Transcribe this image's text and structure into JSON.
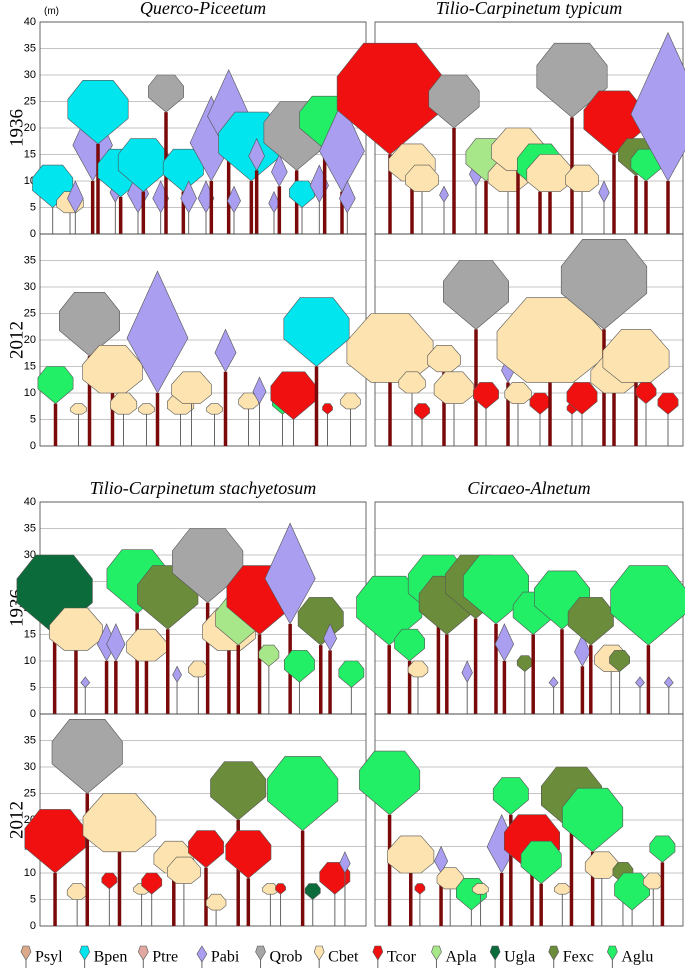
{
  "y_unit": "(m)",
  "species": [
    {
      "code": "Psyl",
      "color": "#d9a98a",
      "shape": "round"
    },
    {
      "code": "Bpen",
      "color": "#00e5ee",
      "shape": "round"
    },
    {
      "code": "Ptre",
      "color": "#e0a8a0",
      "shape": "round"
    },
    {
      "code": "Pabi",
      "color": "#a99ef0",
      "shape": "diamond"
    },
    {
      "code": "Qrob",
      "color": "#a6a6a6",
      "shape": "round"
    },
    {
      "code": "Cbet",
      "color": "#fde3b0",
      "shape": "hex"
    },
    {
      "code": "Tcor",
      "color": "#f01010",
      "shape": "round"
    },
    {
      "code": "Apla",
      "color": "#a8e68a",
      "shape": "round"
    },
    {
      "code": "Ugla",
      "color": "#0b6b3a",
      "shape": "round"
    },
    {
      "code": "Fexc",
      "color": "#6b8c3a",
      "shape": "round"
    },
    {
      "code": "Aglu",
      "color": "#22ee66",
      "shape": "round"
    }
  ],
  "blocks": [
    {
      "titles": [
        "Querco-Piceetum",
        "Tilio-Carpinetum  typicum"
      ],
      "rows": [
        {
          "year": "1936",
          "ylim": [
            0,
            40
          ],
          "yticks": [
            0,
            5,
            10,
            15,
            20,
            25,
            30,
            35,
            40
          ],
          "stands": [
            [
              [
                1,
                13,
                5
              ],
              [
                5,
                8,
                4
              ],
              [
                3,
                10,
                4
              ],
              [
                3,
                25,
                10
              ],
              [
                1,
                29,
                17
              ],
              [
                3,
                10,
                6
              ],
              [
                1,
                16,
                7
              ],
              [
                3,
                12,
                4
              ],
              [
                1,
                18,
                8
              ],
              [
                3,
                10,
                4
              ],
              [
                4,
                30,
                23
              ],
              [
                1,
                16,
                8
              ],
              [
                3,
                10,
                4
              ],
              [
                3,
                10,
                4
              ],
              [
                3,
                26,
                10
              ],
              [
                3,
                31,
                15
              ],
              [
                3,
                9,
                4
              ],
              [
                1,
                23,
                10
              ],
              [
                3,
                18,
                12
              ],
              [
                3,
                8,
                4
              ],
              [
                3,
                15,
                9
              ],
              [
                4,
                25,
                12
              ],
              [
                1,
                10,
                5
              ],
              [
                3,
                13,
                6
              ],
              [
                10,
                26,
                16
              ],
              [
                3,
                25,
                8
              ],
              [
                3,
                10,
                4
              ]
            ],
            [
              [
                6,
                36,
                15
              ],
              [
                5,
                17,
                10
              ],
              [
                5,
                13,
                8
              ],
              [
                3,
                9,
                6
              ],
              [
                4,
                30,
                20
              ],
              [
                3,
                14,
                9
              ],
              [
                7,
                18,
                10
              ],
              [
                5,
                14,
                8
              ],
              [
                5,
                20,
                12
              ],
              [
                10,
                17,
                8
              ],
              [
                5,
                15,
                8
              ],
              [
                4,
                36,
                22
              ],
              [
                5,
                13,
                8
              ],
              [
                3,
                10,
                6
              ],
              [
                6,
                27,
                15
              ],
              [
                9,
                18,
                11
              ],
              [
                10,
                16,
                10
              ],
              [
                3,
                38,
                10
              ]
            ]
          ]
        },
        {
          "year": "2012",
          "ylim": [
            0,
            40
          ],
          "yticks": [
            0,
            5,
            10,
            15,
            20,
            25,
            30,
            35
          ],
          "stands": [
            [
              [
                10,
                15,
                8
              ],
              [
                5,
                8,
                6
              ],
              [
                4,
                29,
                17
              ],
              [
                5,
                19,
                10
              ],
              [
                5,
                10,
                6
              ],
              [
                5,
                8,
                6
              ],
              [
                3,
                33,
                10
              ],
              [
                5,
                10,
                6
              ],
              [
                5,
                14,
                8
              ],
              [
                5,
                8,
                6
              ],
              [
                3,
                22,
                14
              ],
              [
                5,
                10,
                7
              ],
              [
                3,
                13,
                8
              ],
              [
                10,
                10,
                6
              ],
              [
                6,
                14,
                5
              ],
              [
                1,
                28,
                15
              ],
              [
                6,
                8,
                6
              ],
              [
                5,
                10,
                7
              ]
            ],
            [
              [
                5,
                25,
                12
              ],
              [
                5,
                14,
                10
              ],
              [
                6,
                8,
                5
              ],
              [
                5,
                19,
                14
              ],
              [
                5,
                14,
                8
              ],
              [
                4,
                35,
                22
              ],
              [
                6,
                12,
                7
              ],
              [
                3,
                17,
                12
              ],
              [
                5,
                12,
                8
              ],
              [
                6,
                10,
                6
              ],
              [
                5,
                28,
                12
              ],
              [
                6,
                8,
                6
              ],
              [
                6,
                12,
                6
              ],
              [
                4,
                39,
                22
              ],
              [
                5,
                17,
                10
              ],
              [
                5,
                22,
                12
              ],
              [
                6,
                12,
                8
              ],
              [
                6,
                10,
                6
              ]
            ]
          ]
        }
      ]
    },
    {
      "titles": [
        "Tilio-Carpinetum  stachyetosum",
        "Circaeo-Alnetum"
      ],
      "rows": [
        {
          "year": "1936",
          "ylim": [
            0,
            40
          ],
          "yticks": [
            0,
            5,
            10,
            15,
            20,
            25,
            30,
            35,
            40
          ],
          "stands": [
            [
              [
                8,
                30,
                15
              ],
              [
                5,
                20,
                12
              ],
              [
                3,
                7,
                5
              ],
              [
                3,
                17,
                10
              ],
              [
                3,
                17,
                10
              ],
              [
                10,
                31,
                19
              ],
              [
                5,
                16,
                10
              ],
              [
                9,
                28,
                16
              ],
              [
                3,
                9,
                6
              ],
              [
                5,
                10,
                7
              ],
              [
                4,
                35,
                21
              ],
              [
                5,
                20,
                12
              ],
              [
                7,
                22,
                13
              ],
              [
                6,
                28,
                15
              ],
              [
                7,
                13,
                9
              ],
              [
                3,
                36,
                17
              ],
              [
                10,
                12,
                6
              ],
              [
                9,
                22,
                13
              ],
              [
                3,
                17,
                12
              ],
              [
                10,
                10,
                5
              ]
            ],
            [
              [
                10,
                26,
                13
              ],
              [
                10,
                16,
                10
              ],
              [
                5,
                10,
                7
              ],
              [
                10,
                30,
                18
              ],
              [
                9,
                26,
                15
              ],
              [
                3,
                10,
                6
              ],
              [
                9,
                30,
                18
              ],
              [
                10,
                30,
                17
              ],
              [
                3,
                17,
                10
              ],
              [
                9,
                11,
                8
              ],
              [
                10,
                23,
                15
              ],
              [
                3,
                7,
                5
              ],
              [
                10,
                27,
                16
              ],
              [
                3,
                15,
                9
              ],
              [
                9,
                22,
                13
              ],
              [
                5,
                13,
                8
              ],
              [
                9,
                12,
                8
              ],
              [
                3,
                7,
                5
              ],
              [
                10,
                28,
                13
              ],
              [
                3,
                7,
                5
              ]
            ]
          ]
        },
        {
          "year": "2012",
          "ylim": [
            0,
            40
          ],
          "yticks": [
            0,
            5,
            10,
            15,
            20,
            25,
            30,
            35
          ],
          "stands": [
            [
              [
                6,
                22,
                10
              ],
              [
                5,
                8,
                5
              ],
              [
                4,
                39,
                25
              ],
              [
                6,
                10,
                7
              ],
              [
                5,
                25,
                14
              ],
              [
                5,
                8,
                6
              ],
              [
                6,
                10,
                6
              ],
              [
                5,
                16,
                10
              ],
              [
                5,
                13,
                8
              ],
              [
                6,
                18,
                11
              ],
              [
                5,
                6,
                3
              ],
              [
                9,
                31,
                20
              ],
              [
                6,
                18,
                9
              ],
              [
                5,
                8,
                6
              ],
              [
                6,
                8,
                6
              ],
              [
                10,
                32,
                18
              ],
              [
                8,
                8,
                5
              ],
              [
                6,
                12,
                6
              ],
              [
                3,
                14,
                10
              ]
            ],
            [
              [
                10,
                33,
                21
              ],
              [
                5,
                17,
                10
              ],
              [
                6,
                8,
                6
              ],
              [
                3,
                15,
                10
              ],
              [
                5,
                11,
                7
              ],
              [
                10,
                9,
                3
              ],
              [
                5,
                8,
                6
              ],
              [
                3,
                21,
                10
              ],
              [
                10,
                28,
                21
              ],
              [
                6,
                21,
                10
              ],
              [
                10,
                16,
                8
              ],
              [
                5,
                8,
                6
              ],
              [
                9,
                30,
                18
              ],
              [
                10,
                26,
                14
              ],
              [
                5,
                14,
                9
              ],
              [
                9,
                12,
                8
              ],
              [
                10,
                10,
                3
              ],
              [
                5,
                10,
                7
              ],
              [
                10,
                17,
                12
              ]
            ]
          ]
        }
      ]
    }
  ]
}
